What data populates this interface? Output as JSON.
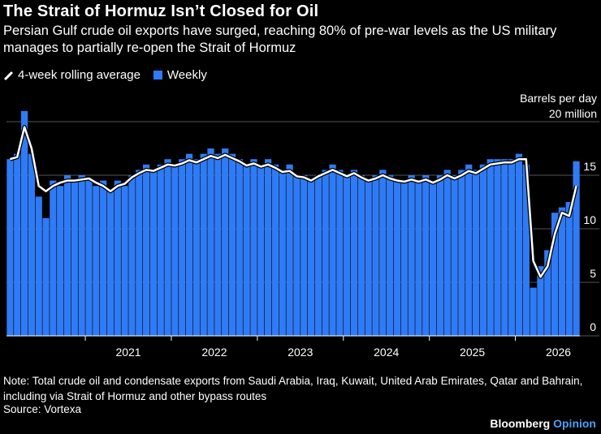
{
  "title": "The Strait of Hormuz Isn’t Closed for Oil",
  "subtitle": "Persian Gulf crude oil exports have surged, reaching 80% of pre-war levels as the US military manages to partially re-open the Strait of Hormuz",
  "legend": {
    "line_label": "4-week rolling average",
    "bar_label": "Weekly"
  },
  "unit": {
    "line1": "Barrels per day",
    "line2": "20 million"
  },
  "note": "Note: Total crude oil and condensate exports from Saudi Arabia, Iraq, Kuwait, United Arab Emirates, Qatar and Bahrain, including via Strait of Hormuz and other bypass routes",
  "source": "Source: Vortexa",
  "brand": {
    "name": "Bloomberg",
    "suffix": "Opinion"
  },
  "colors": {
    "bar": "#2f7bf5",
    "line": "#ffffff",
    "background": "#000000",
    "grid": "#555555"
  },
  "chart_data": {
    "type": "bar",
    "x_range": [
      "2020-02",
      "2026-09"
    ],
    "x_ticks": [
      "2021",
      "2022",
      "2023",
      "2024",
      "2025",
      "2026"
    ],
    "ylim": [
      0,
      20
    ],
    "y_ticks": [
      0,
      5,
      10,
      15
    ],
    "grid": true,
    "legend_position": "top-left",
    "series": [
      {
        "name": "Weekly",
        "type": "bar",
        "points": [
          [
            "2020-02",
            16.5
          ],
          [
            "2020-03",
            17.0
          ],
          [
            "2020-04",
            21.0
          ],
          [
            "2020-05",
            17.0
          ],
          [
            "2020-06",
            13.0
          ],
          [
            "2020-07",
            11.0
          ],
          [
            "2020-08",
            14.5
          ],
          [
            "2020-09",
            14.0
          ],
          [
            "2020-10",
            15.0
          ],
          [
            "2020-11",
            14.5
          ],
          [
            "2020-12",
            15.0
          ],
          [
            "2021-01",
            14.5
          ],
          [
            "2021-02",
            14.0
          ],
          [
            "2021-03",
            14.5
          ],
          [
            "2021-04",
            13.5
          ],
          [
            "2021-05",
            14.5
          ],
          [
            "2021-06",
            14.0
          ],
          [
            "2021-07",
            15.0
          ],
          [
            "2021-08",
            15.5
          ],
          [
            "2021-09",
            16.0
          ],
          [
            "2021-10",
            15.5
          ],
          [
            "2021-11",
            16.0
          ],
          [
            "2021-12",
            16.5
          ],
          [
            "2022-01",
            16.0
          ],
          [
            "2022-02",
            16.5
          ],
          [
            "2022-03",
            17.0
          ],
          [
            "2022-04",
            16.5
          ],
          [
            "2022-05",
            17.0
          ],
          [
            "2022-06",
            17.5
          ],
          [
            "2022-07",
            17.0
          ],
          [
            "2022-08",
            17.5
          ],
          [
            "2022-09",
            17.0
          ],
          [
            "2022-10",
            16.5
          ],
          [
            "2022-11",
            16.0
          ],
          [
            "2022-12",
            16.5
          ],
          [
            "2023-01",
            16.0
          ],
          [
            "2023-02",
            16.5
          ],
          [
            "2023-03",
            16.0
          ],
          [
            "2023-04",
            15.5
          ],
          [
            "2023-05",
            16.0
          ],
          [
            "2023-06",
            15.0
          ],
          [
            "2023-07",
            15.0
          ],
          [
            "2023-08",
            14.5
          ],
          [
            "2023-09",
            15.0
          ],
          [
            "2023-10",
            15.5
          ],
          [
            "2023-11",
            16.0
          ],
          [
            "2023-12",
            15.5
          ],
          [
            "2024-01",
            15.0
          ],
          [
            "2024-02",
            15.5
          ],
          [
            "2024-03",
            15.0
          ],
          [
            "2024-04",
            14.5
          ],
          [
            "2024-05",
            15.0
          ],
          [
            "2024-06",
            15.5
          ],
          [
            "2024-07",
            15.0
          ],
          [
            "2024-08",
            14.5
          ],
          [
            "2024-09",
            14.5
          ],
          [
            "2024-10",
            15.0
          ],
          [
            "2024-11",
            14.5
          ],
          [
            "2024-12",
            15.0
          ],
          [
            "2025-01",
            14.5
          ],
          [
            "2025-02",
            15.0
          ],
          [
            "2025-03",
            15.5
          ],
          [
            "2025-04",
            15.0
          ],
          [
            "2025-05",
            15.5
          ],
          [
            "2025-06",
            16.0
          ],
          [
            "2025-07",
            15.5
          ],
          [
            "2025-08",
            16.0
          ],
          [
            "2025-09",
            16.5
          ],
          [
            "2025-10",
            16.5
          ],
          [
            "2025-11",
            16.5
          ],
          [
            "2025-12",
            16.5
          ],
          [
            "2026-01",
            17.0
          ],
          [
            "2026-02",
            16.0
          ],
          [
            "2026-03",
            4.5
          ],
          [
            "2026-04",
            6.5
          ],
          [
            "2026-05",
            8.0
          ],
          [
            "2026-06",
            11.5
          ],
          [
            "2026-07",
            12.0
          ],
          [
            "2026-08",
            12.5
          ],
          [
            "2026-09",
            16.3
          ]
        ]
      },
      {
        "name": "4-week rolling average",
        "type": "line",
        "points": [
          [
            "2020-02",
            16.5
          ],
          [
            "2020-03",
            16.7
          ],
          [
            "2020-04",
            19.5
          ],
          [
            "2020-05",
            17.5
          ],
          [
            "2020-06",
            14.0
          ],
          [
            "2020-07",
            13.5
          ],
          [
            "2020-08",
            14.0
          ],
          [
            "2020-09",
            14.3
          ],
          [
            "2020-10",
            14.5
          ],
          [
            "2020-11",
            14.5
          ],
          [
            "2020-12",
            14.6
          ],
          [
            "2021-01",
            14.7
          ],
          [
            "2021-02",
            14.3
          ],
          [
            "2021-03",
            14.0
          ],
          [
            "2021-04",
            13.5
          ],
          [
            "2021-05",
            14.0
          ],
          [
            "2021-06",
            14.2
          ],
          [
            "2021-07",
            14.8
          ],
          [
            "2021-08",
            15.2
          ],
          [
            "2021-09",
            15.5
          ],
          [
            "2021-10",
            15.4
          ],
          [
            "2021-11",
            15.7
          ],
          [
            "2021-12",
            16.0
          ],
          [
            "2022-01",
            15.9
          ],
          [
            "2022-02",
            16.1
          ],
          [
            "2022-03",
            16.4
          ],
          [
            "2022-04",
            16.2
          ],
          [
            "2022-05",
            16.5
          ],
          [
            "2022-06",
            16.8
          ],
          [
            "2022-07",
            16.6
          ],
          [
            "2022-08",
            16.9
          ],
          [
            "2022-09",
            16.6
          ],
          [
            "2022-10",
            16.3
          ],
          [
            "2022-11",
            15.9
          ],
          [
            "2022-12",
            16.1
          ],
          [
            "2023-01",
            15.8
          ],
          [
            "2023-02",
            16.0
          ],
          [
            "2023-03",
            15.7
          ],
          [
            "2023-04",
            15.3
          ],
          [
            "2023-05",
            15.4
          ],
          [
            "2023-06",
            14.9
          ],
          [
            "2023-07",
            14.8
          ],
          [
            "2023-08",
            14.5
          ],
          [
            "2023-09",
            14.9
          ],
          [
            "2023-10",
            15.2
          ],
          [
            "2023-11",
            15.5
          ],
          [
            "2023-12",
            15.2
          ],
          [
            "2024-01",
            14.9
          ],
          [
            "2024-02",
            15.2
          ],
          [
            "2024-03",
            14.8
          ],
          [
            "2024-04",
            14.5
          ],
          [
            "2024-05",
            14.7
          ],
          [
            "2024-06",
            15.0
          ],
          [
            "2024-07",
            14.7
          ],
          [
            "2024-08",
            14.5
          ],
          [
            "2024-09",
            14.4
          ],
          [
            "2024-10",
            14.6
          ],
          [
            "2024-11",
            14.4
          ],
          [
            "2024-12",
            14.6
          ],
          [
            "2025-01",
            14.3
          ],
          [
            "2025-02",
            14.6
          ],
          [
            "2025-03",
            15.0
          ],
          [
            "2025-04",
            14.7
          ],
          [
            "2025-05",
            15.0
          ],
          [
            "2025-06",
            15.4
          ],
          [
            "2025-07",
            15.2
          ],
          [
            "2025-08",
            15.6
          ],
          [
            "2025-09",
            16.0
          ],
          [
            "2025-10",
            16.1
          ],
          [
            "2025-11",
            16.2
          ],
          [
            "2025-12",
            16.2
          ],
          [
            "2026-01",
            16.5
          ],
          [
            "2026-02",
            16.5
          ],
          [
            "2026-03",
            7.0
          ],
          [
            "2026-04",
            5.5
          ],
          [
            "2026-05",
            6.5
          ],
          [
            "2026-06",
            9.5
          ],
          [
            "2026-07",
            11.5
          ],
          [
            "2026-08",
            11.2
          ],
          [
            "2026-09",
            14.0
          ]
        ]
      }
    ]
  }
}
